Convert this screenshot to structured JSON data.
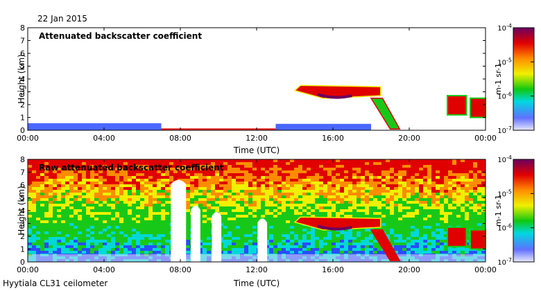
{
  "header": {
    "date": "22 Jan 2015"
  },
  "footer": {
    "station": "Hyytiala CL31 ceilometer"
  },
  "colors": {
    "low": "#dcdcf8",
    "blue": "#2a4dff",
    "cyan": "#00d8d8",
    "green": "#18c818",
    "yellow": "#f0f000",
    "orange": "#ff8c00",
    "red": "#e00000",
    "purple": "#6a0060"
  },
  "chart_data": [
    {
      "type": "heatmap",
      "title": "Attenuated backscatter coefficient",
      "xlabel": "Time (UTC)",
      "ylabel": "Height (km)",
      "xlim": [
        0,
        24
      ],
      "ylim": [
        0,
        8
      ],
      "xticks": [
        "00:00",
        "04:00",
        "08:00",
        "12:00",
        "16:00",
        "20:00",
        "00:00"
      ],
      "yticks": [
        "0",
        "1",
        "2",
        "3",
        "4",
        "5",
        "6",
        "7",
        "8"
      ],
      "colorbar": {
        "scale": "log",
        "range": [
          1e-07,
          0.0001
        ],
        "ticks": [
          "10-7",
          "10-6",
          "10-5",
          "10-4"
        ],
        "label": "m-1 sr-1"
      },
      "features": [
        {
          "type": "surface_layer",
          "t_start": 0,
          "t_end": 7.0,
          "h_top": 0.55,
          "level": "blue"
        },
        {
          "type": "surface_layer",
          "t_start": 7.0,
          "t_end": 13.0,
          "h_top": 0.15,
          "level": "red"
        },
        {
          "type": "surface_layer",
          "t_start": 13.0,
          "t_end": 18.0,
          "h_top": 0.5,
          "level": "blue"
        },
        {
          "type": "cloud_layer",
          "t_start": 14.0,
          "t_end": 18.5,
          "h_base": 2.7,
          "h_top": 3.5,
          "level": "red"
        },
        {
          "type": "descending_cloud",
          "t_start": 18.0,
          "t_end": 19.5,
          "h_start": 2.5,
          "h_end": 0.1,
          "level": "green"
        },
        {
          "type": "low_cloud",
          "t_start": 22.0,
          "t_end": 23.0,
          "h_base": 1.2,
          "h_top": 2.7,
          "level": "red"
        },
        {
          "type": "low_cloud",
          "t_start": 23.2,
          "t_end": 24.0,
          "h_base": 1.0,
          "h_top": 2.5,
          "level": "red"
        }
      ]
    },
    {
      "type": "heatmap",
      "title": "Raw attenuated backscatter coefficient",
      "xlabel": "Time (UTC)",
      "ylabel": "Height (km)",
      "xlim": [
        0,
        24
      ],
      "ylim": [
        0,
        8
      ],
      "xticks": [
        "00:00",
        "04:00",
        "08:00",
        "12:00",
        "16:00",
        "20:00",
        "00:00"
      ],
      "yticks": [
        "0",
        "1",
        "2",
        "3",
        "4",
        "5",
        "6",
        "7",
        "8"
      ],
      "colorbar": {
        "scale": "log",
        "range": [
          1e-07,
          0.0001
        ],
        "ticks": [
          "10-7",
          "10-6",
          "10-5",
          "10-4"
        ],
        "label": "m-1 sr-1"
      },
      "features": [
        {
          "type": "noise_gradient",
          "note": "signal increases with height: blue near ground, green mid, red at top"
        },
        {
          "type": "white_plume",
          "t_center": 7.9,
          "width_h": 0.8,
          "h_top": 6.5
        },
        {
          "type": "white_plume",
          "t_center": 8.8,
          "width_h": 0.5,
          "h_top": 4.5
        },
        {
          "type": "white_plume",
          "t_center": 9.9,
          "width_h": 0.5,
          "h_top": 4.0
        },
        {
          "type": "white_plume",
          "t_center": 12.3,
          "width_h": 0.5,
          "h_top": 3.5
        },
        {
          "type": "cloud_layer",
          "t_start": 14.0,
          "t_end": 18.5,
          "h_base": 2.7,
          "h_top": 3.5,
          "level": "red"
        },
        {
          "type": "descending_cloud",
          "t_start": 18.0,
          "t_end": 19.5,
          "h_start": 2.5,
          "h_end": 0.1,
          "level": "red"
        },
        {
          "type": "low_cloud",
          "t_start": 22.0,
          "t_end": 23.0,
          "h_base": 1.2,
          "h_top": 2.7,
          "level": "red"
        },
        {
          "type": "low_cloud",
          "t_start": 23.2,
          "t_end": 24.0,
          "h_base": 1.0,
          "h_top": 2.5,
          "level": "red"
        }
      ]
    }
  ]
}
